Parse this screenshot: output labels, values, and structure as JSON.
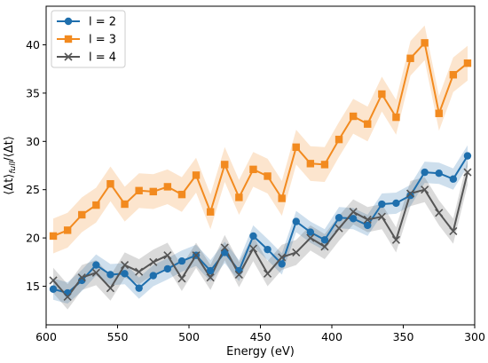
{
  "chart_data": {
    "type": "line",
    "xlabel": "Energy (eV)",
    "ylabel_main": "⟨Δt⟩",
    "ylabel_sub": "full",
    "ylabel_tail": "/⟨Δt⟩",
    "xlim": [
      600,
      300
    ],
    "ylim": [
      11,
      44
    ],
    "x_ticks": [
      600,
      550,
      500,
      450,
      400,
      350,
      300
    ],
    "y_ticks": [
      15,
      20,
      25,
      30,
      35,
      40
    ],
    "grid": false,
    "legend_position": "top-left",
    "series": [
      {
        "name": "l = 2",
        "color": "#1f6fad",
        "marker": "circle",
        "x": [
          595,
          585,
          575,
          565,
          555,
          545,
          535,
          525,
          515,
          505,
          495,
          485,
          475,
          465,
          455,
          445,
          435,
          425,
          415,
          405,
          395,
          385,
          375,
          365,
          355,
          345,
          335,
          325,
          315,
          305
        ],
        "y": [
          14.7,
          14.3,
          15.6,
          17.2,
          16.2,
          16.3,
          14.8,
          16.1,
          16.8,
          17.6,
          18.2,
          16.6,
          18.5,
          16.6,
          20.2,
          18.8,
          17.3,
          21.7,
          20.6,
          19.8,
          22.1,
          22.0,
          21.3,
          23.5,
          23.6,
          24.4,
          26.8,
          26.7,
          26.1,
          28.5
        ],
        "band": 1.1
      },
      {
        "name": "l = 3",
        "color": "#f28a1f",
        "marker": "square",
        "x": [
          595,
          585,
          575,
          565,
          555,
          545,
          535,
          525,
          515,
          505,
          495,
          485,
          475,
          465,
          455,
          445,
          435,
          425,
          415,
          405,
          395,
          385,
          375,
          365,
          355,
          345,
          335,
          325,
          315,
          305
        ],
        "y": [
          20.2,
          20.8,
          22.4,
          23.4,
          25.6,
          23.5,
          24.9,
          24.8,
          25.3,
          24.5,
          26.5,
          22.7,
          27.6,
          24.2,
          27.1,
          26.4,
          24.1,
          29.4,
          27.7,
          27.6,
          30.2,
          32.6,
          31.8,
          34.9,
          32.5,
          38.6,
          40.2,
          32.9,
          36.9,
          38.1
        ],
        "band": 1.8
      },
      {
        "name": "l = 4",
        "color": "#555555",
        "marker": "x",
        "x": [
          595,
          585,
          575,
          565,
          555,
          545,
          535,
          525,
          515,
          505,
          495,
          485,
          475,
          465,
          455,
          445,
          435,
          425,
          415,
          405,
          395,
          385,
          375,
          365,
          355,
          345,
          335,
          325,
          315,
          305
        ],
        "y": [
          15.6,
          13.9,
          15.9,
          16.4,
          14.8,
          17.2,
          16.5,
          17.5,
          18.2,
          15.8,
          18.2,
          15.9,
          19.0,
          16.2,
          18.9,
          16.3,
          18.0,
          18.5,
          20.0,
          19.1,
          21.0,
          22.7,
          21.9,
          22.2,
          19.8,
          24.6,
          25.0,
          22.6,
          20.7,
          26.8
        ],
        "band": 1.3
      }
    ]
  }
}
